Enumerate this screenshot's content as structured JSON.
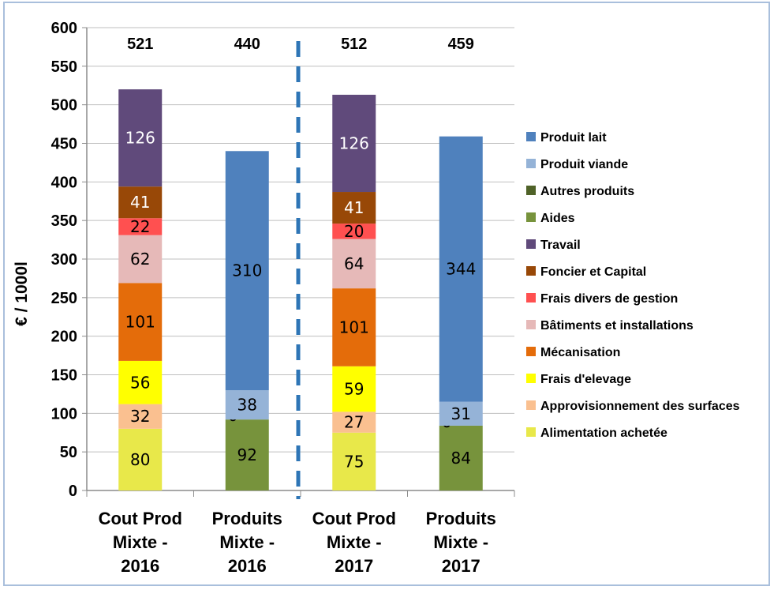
{
  "chart_data": {
    "type": "bar",
    "stacked": true,
    "ylabel": "€ / 1000l",
    "ylim": [
      0,
      600
    ],
    "yticks": [
      0,
      50,
      100,
      150,
      200,
      250,
      300,
      350,
      400,
      450,
      500,
      550,
      600
    ],
    "categories": [
      [
        "Cout Prod",
        "Mixte -",
        "2016"
      ],
      [
        "Produits",
        "Mixte -",
        "2016"
      ],
      [
        "Cout Prod",
        "Mixte -",
        "2017"
      ],
      [
        "Produits",
        "Mixte -",
        "2017"
      ]
    ],
    "totals": [
      "521",
      "440",
      "512",
      "459"
    ],
    "separator_after_category": 1,
    "legend_position": "right",
    "series": [
      {
        "name": "Produit lait",
        "color": "#4f81bd",
        "label_color": "#000000",
        "values": [
          null,
          310,
          null,
          344
        ]
      },
      {
        "name": "Produit viande",
        "color": "#95b3d7",
        "label_color": "#000000",
        "values": [
          null,
          38,
          null,
          31
        ]
      },
      {
        "name": "Autres produits",
        "color": "#4f6228",
        "label_color": "#000000",
        "values": [
          null,
          0,
          null,
          0
        ]
      },
      {
        "name": "Aides",
        "color": "#77933c",
        "label_color": "#000000",
        "values": [
          null,
          92,
          null,
          84
        ]
      },
      {
        "name": "Travail",
        "color": "#604a7b",
        "label_color": "#ffffff",
        "values": [
          126,
          null,
          126,
          null
        ]
      },
      {
        "name": "Foncier et Capital",
        "color": "#984807",
        "label_color": "#ffffff",
        "values": [
          41,
          null,
          41,
          null
        ]
      },
      {
        "name": "Frais divers de gestion",
        "color": "#ff5050",
        "label_color": "#000000",
        "values": [
          22,
          null,
          20,
          null
        ]
      },
      {
        "name": "Bâtiments et installations",
        "color": "#e6b9b8",
        "label_color": "#000000",
        "values": [
          62,
          null,
          64,
          null
        ]
      },
      {
        "name": "Mécanisation",
        "color": "#e46c0a",
        "label_color": "#000000",
        "values": [
          101,
          null,
          101,
          null
        ]
      },
      {
        "name": "Frais d'elevage",
        "color": "#ffff00",
        "label_color": "#000000",
        "values": [
          56,
          null,
          59,
          null
        ]
      },
      {
        "name": "Approvisionnement des surfaces",
        "color": "#fac090",
        "label_color": "#000000",
        "values": [
          32,
          null,
          27,
          null
        ]
      },
      {
        "name": "Alimentation achetée",
        "color": "#e8e84a",
        "label_color": "#000000",
        "values": [
          80,
          null,
          75,
          null
        ]
      }
    ]
  }
}
